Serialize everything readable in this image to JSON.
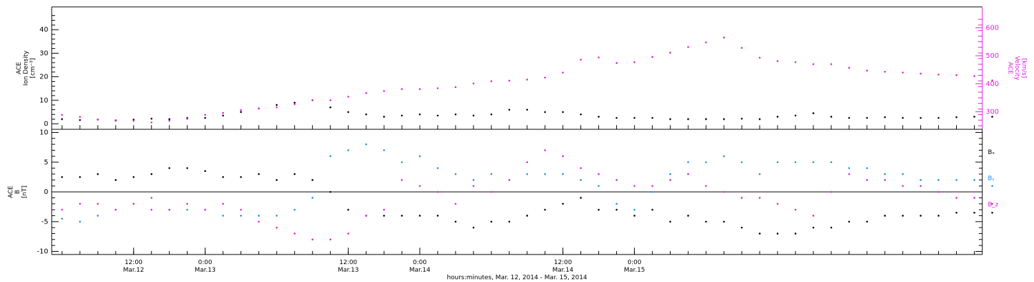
{
  "colors": {
    "black": "#000000",
    "magenta": "#e21be2",
    "blue": "#1a8fe0"
  },
  "chart_data": [
    {
      "type": "scatter",
      "panel": "top",
      "ylabel": [
        "ACE",
        "Ion Density",
        "[cm⁻³]"
      ],
      "y2label": [
        "ACE",
        "Velocity",
        "[km/s]"
      ],
      "ylim": [
        0,
        48
      ],
      "y2lim": [
        240,
        650
      ],
      "yticks": [
        0,
        10,
        20,
        30,
        40
      ],
      "y2ticks": [
        300,
        400,
        500,
        600
      ],
      "series": [
        {
          "key": "density",
          "axis": "left",
          "color": "#000000",
          "points": [
            [
              0,
              2
            ],
            [
              3,
              1.6
            ],
            [
              6,
              1.8
            ],
            [
              9,
              1.5
            ],
            [
              12,
              1.8
            ],
            [
              15,
              2.2
            ],
            [
              18,
              2
            ],
            [
              21,
              2.5
            ],
            [
              24,
              2.5
            ],
            [
              27,
              3.5
            ],
            [
              30,
              5
            ],
            [
              33,
              6.5
            ],
            [
              36,
              8
            ],
            [
              39,
              9
            ],
            [
              42,
              10
            ],
            [
              45,
              7
            ],
            [
              48,
              5
            ],
            [
              51,
              4
            ],
            [
              54,
              3
            ],
            [
              57,
              3.5
            ],
            [
              60,
              4
            ],
            [
              63,
              3.5
            ],
            [
              66,
              4
            ],
            [
              69,
              3.5
            ],
            [
              72,
              4
            ],
            [
              75,
              6
            ],
            [
              78,
              6
            ],
            [
              81,
              5
            ],
            [
              84,
              5
            ],
            [
              87,
              4
            ],
            [
              90,
              3
            ],
            [
              93,
              2.5
            ],
            [
              96,
              2.5
            ],
            [
              99,
              2.5
            ],
            [
              102,
              2
            ],
            [
              105,
              2
            ],
            [
              108,
              2
            ],
            [
              111,
              2
            ],
            [
              114,
              2.2
            ],
            [
              117,
              2
            ],
            [
              120,
              3
            ],
            [
              123,
              3.5
            ],
            [
              126,
              4.5
            ],
            [
              129,
              3
            ],
            [
              132,
              2.5
            ],
            [
              135,
              2.5
            ],
            [
              138,
              2.8
            ],
            [
              141,
              2.5
            ],
            [
              144,
              2.5
            ],
            [
              147,
              2.5
            ],
            [
              150,
              2.8
            ],
            [
              153,
              3
            ],
            [
              156,
              3
            ]
          ]
        },
        {
          "key": "velocity",
          "axis": "right",
          "color": "#e21be2",
          "points": [
            [
              0,
              289
            ],
            [
              3,
              282
            ],
            [
              6,
              272
            ],
            [
              9,
              268
            ],
            [
              12,
              268
            ],
            [
              15,
              262
            ],
            [
              18,
              268
            ],
            [
              21,
              275
            ],
            [
              24,
              289
            ],
            [
              27,
              296
            ],
            [
              30,
              306
            ],
            [
              33,
              312
            ],
            [
              36,
              316
            ],
            [
              39,
              327
            ],
            [
              42,
              341
            ],
            [
              45,
              341
            ],
            [
              48,
              354
            ],
            [
              51,
              367
            ],
            [
              54,
              374
            ],
            [
              57,
              381
            ],
            [
              60,
              381
            ],
            [
              63,
              384
            ],
            [
              66,
              388
            ],
            [
              69,
              401
            ],
            [
              72,
              409
            ],
            [
              75,
              411
            ],
            [
              78,
              415
            ],
            [
              81,
              422
            ],
            [
              84,
              440
            ],
            [
              87,
              486
            ],
            [
              90,
              494
            ],
            [
              93,
              474
            ],
            [
              96,
              477
            ],
            [
              99,
              496
            ],
            [
              102,
              511
            ],
            [
              105,
              531
            ],
            [
              108,
              548
            ],
            [
              111,
              565
            ],
            [
              114,
              528
            ],
            [
              117,
              493
            ],
            [
              120,
              481
            ],
            [
              123,
              477
            ],
            [
              126,
              470
            ],
            [
              129,
              470
            ],
            [
              132,
              457
            ],
            [
              135,
              447
            ],
            [
              138,
              443
            ],
            [
              141,
              440
            ],
            [
              144,
              436
            ],
            [
              147,
              433
            ],
            [
              150,
              431
            ],
            [
              153,
              427
            ],
            [
              156,
              412
            ]
          ]
        }
      ]
    },
    {
      "type": "scatter",
      "panel": "bottom",
      "ylabel": [
        "ACE",
        "B",
        "[nT]"
      ],
      "ylim": [
        -10.5,
        10.5
      ],
      "yticks": [
        -10,
        -5,
        0,
        5,
        10
      ],
      "xlabel": "hours:minutes, Mar. 12, 2014 - Mar. 15, 2014",
      "x_ticks": [
        {
          "hour": 12,
          "time": "12:00",
          "date": "Mar.12"
        },
        {
          "hour": 24,
          "time": "0:00",
          "date": "Mar.13"
        },
        {
          "hour": 48,
          "time": "12:00",
          "date": "Mar.13"
        },
        {
          "hour": 60,
          "time": "0:00",
          "date": "Mar.14"
        },
        {
          "hour": 84,
          "time": "12:00",
          "date": "Mar.14"
        },
        {
          "hour": 96,
          "time": "0:00",
          "date": "Mar.15"
        }
      ],
      "legend": [
        {
          "name": "Bₓ",
          "color": "#000000"
        },
        {
          "name": "Bᵧ",
          "color": "#1a8fe0"
        },
        {
          "name": "B_z",
          "color": "#e21be2"
        }
      ],
      "series": [
        {
          "key": "bx",
          "color": "#000000",
          "points": [
            [
              0,
              2.5
            ],
            [
              3,
              2.5
            ],
            [
              6,
              3
            ],
            [
              9,
              2
            ],
            [
              12,
              2.5
            ],
            [
              15,
              3
            ],
            [
              18,
              4
            ],
            [
              21,
              4
            ],
            [
              24,
              3.5
            ],
            [
              27,
              2.5
            ],
            [
              30,
              2.5
            ],
            [
              33,
              3
            ],
            [
              36,
              2
            ],
            [
              39,
              3
            ],
            [
              42,
              2
            ],
            [
              45,
              0
            ],
            [
              48,
              -3
            ],
            [
              51,
              -4
            ],
            [
              54,
              -4
            ],
            [
              57,
              -4
            ],
            [
              60,
              -4
            ],
            [
              63,
              -4
            ],
            [
              66,
              -5
            ],
            [
              69,
              -6
            ],
            [
              72,
              -5
            ],
            [
              75,
              -5
            ],
            [
              78,
              -4
            ],
            [
              81,
              -3
            ],
            [
              84,
              -2
            ],
            [
              87,
              -1
            ],
            [
              90,
              -3
            ],
            [
              93,
              -3
            ],
            [
              96,
              -4
            ],
            [
              99,
              -3
            ],
            [
              102,
              -5
            ],
            [
              105,
              -4
            ],
            [
              108,
              -5
            ],
            [
              111,
              -5
            ],
            [
              114,
              -6
            ],
            [
              117,
              -7
            ],
            [
              120,
              -7
            ],
            [
              123,
              -7
            ],
            [
              126,
              -6
            ],
            [
              129,
              -6
            ],
            [
              132,
              -5
            ],
            [
              135,
              -5
            ],
            [
              138,
              -4
            ],
            [
              141,
              -4
            ],
            [
              144,
              -4
            ],
            [
              147,
              -4
            ],
            [
              150,
              -3.5
            ],
            [
              153,
              -3.5
            ],
            [
              156,
              -3.5
            ]
          ]
        },
        {
          "key": "by",
          "color": "#1a8fe0",
          "points": [
            [
              0,
              -4.5
            ],
            [
              3,
              -5
            ],
            [
              6,
              -4
            ],
            [
              9,
              -3
            ],
            [
              12,
              -2
            ],
            [
              15,
              -1
            ],
            [
              18,
              -3
            ],
            [
              21,
              -3
            ],
            [
              24,
              -3
            ],
            [
              27,
              -4
            ],
            [
              30,
              -4
            ],
            [
              33,
              -4
            ],
            [
              36,
              -4
            ],
            [
              39,
              -3
            ],
            [
              42,
              -1
            ],
            [
              45,
              6
            ],
            [
              48,
              7
            ],
            [
              51,
              8
            ],
            [
              54,
              7
            ],
            [
              57,
              5
            ],
            [
              60,
              6
            ],
            [
              63,
              4
            ],
            [
              66,
              3
            ],
            [
              69,
              2
            ],
            [
              72,
              3
            ],
            [
              75,
              2
            ],
            [
              78,
              3
            ],
            [
              81,
              3
            ],
            [
              84,
              3
            ],
            [
              87,
              2
            ],
            [
              90,
              1
            ],
            [
              93,
              -2
            ],
            [
              96,
              -3
            ],
            [
              99,
              0
            ],
            [
              102,
              3
            ],
            [
              105,
              5
            ],
            [
              108,
              5
            ],
            [
              111,
              6
            ],
            [
              114,
              5
            ],
            [
              117,
              3
            ],
            [
              120,
              5
            ],
            [
              123,
              5
            ],
            [
              126,
              5
            ],
            [
              129,
              5
            ],
            [
              132,
              4
            ],
            [
              135,
              4
            ],
            [
              138,
              3
            ],
            [
              141,
              3
            ],
            [
              144,
              2
            ],
            [
              147,
              2
            ],
            [
              150,
              2
            ],
            [
              153,
              2
            ],
            [
              156,
              1
            ]
          ]
        },
        {
          "key": "bz",
          "color": "#e21be2",
          "points": [
            [
              0,
              -3
            ],
            [
              3,
              -2
            ],
            [
              6,
              -2
            ],
            [
              9,
              -3
            ],
            [
              12,
              -2
            ],
            [
              15,
              -3
            ],
            [
              18,
              -3
            ],
            [
              21,
              -2
            ],
            [
              24,
              -3
            ],
            [
              27,
              -2
            ],
            [
              30,
              -3
            ],
            [
              33,
              -5
            ],
            [
              36,
              -6
            ],
            [
              39,
              -7
            ],
            [
              42,
              -8
            ],
            [
              45,
              -8
            ],
            [
              48,
              -7
            ],
            [
              51,
              -4
            ],
            [
              54,
              -3
            ],
            [
              57,
              2
            ],
            [
              60,
              1
            ],
            [
              63,
              0
            ],
            [
              66,
              -2
            ],
            [
              69,
              1
            ],
            [
              72,
              0
            ],
            [
              75,
              2
            ],
            [
              78,
              5
            ],
            [
              81,
              7
            ],
            [
              84,
              6
            ],
            [
              87,
              4
            ],
            [
              90,
              3
            ],
            [
              93,
              2
            ],
            [
              96,
              1
            ],
            [
              99,
              1
            ],
            [
              102,
              2
            ],
            [
              105,
              3
            ],
            [
              108,
              1
            ],
            [
              111,
              0
            ],
            [
              114,
              -1
            ],
            [
              117,
              -1
            ],
            [
              120,
              -2
            ],
            [
              123,
              -3
            ],
            [
              126,
              -4
            ],
            [
              129,
              0
            ],
            [
              132,
              3
            ],
            [
              135,
              2
            ],
            [
              138,
              2
            ],
            [
              141,
              1
            ],
            [
              144,
              1
            ],
            [
              147,
              0
            ],
            [
              150,
              -1
            ],
            [
              153,
              -1
            ],
            [
              156,
              -2
            ]
          ]
        }
      ]
    }
  ]
}
